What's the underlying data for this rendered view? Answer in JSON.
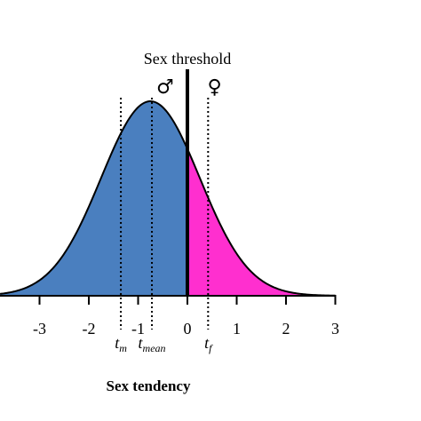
{
  "chart_data": {
    "type": "area",
    "distribution": "normal",
    "mean": -0.75,
    "sd": 1.0,
    "xlim": [
      -3.8,
      3
    ],
    "x_ticks": [
      -3,
      -2,
      -1,
      0,
      1,
      2,
      3
    ],
    "x_tick_labels": [
      "-3",
      "-2",
      "-1",
      "0",
      "1",
      "2",
      "3"
    ],
    "xlabel": "Sex tendency",
    "ylabel": "",
    "threshold": {
      "x": 0,
      "label": "Sex threshold"
    },
    "regions": [
      {
        "from": -3.8,
        "to": 0,
        "color": "#4a7fbf"
      },
      {
        "from": 0,
        "to": 3,
        "color": "#ff2fcf"
      }
    ],
    "markers": [
      {
        "x": -1.35,
        "base": "t",
        "sub": "m"
      },
      {
        "x": -0.72,
        "base": "t",
        "sub": "mean"
      },
      {
        "x": 0.42,
        "base": "t",
        "sub": "f"
      }
    ],
    "symbols": [
      {
        "x": -0.45,
        "glyph": "♂"
      },
      {
        "x": 0.55,
        "glyph": "♀"
      }
    ]
  }
}
